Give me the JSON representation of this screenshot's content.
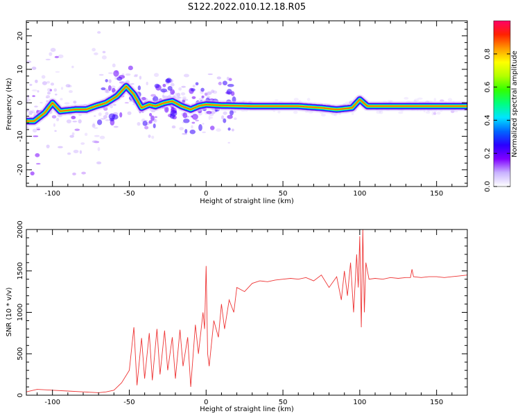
{
  "chart_data": [
    {
      "type": "heatmap",
      "title": "S122.2022.010.12.18.R05",
      "xlabel": "Height of straight line (km)",
      "ylabel": "Frequency (Hz)",
      "xlim": [
        -117,
        170
      ],
      "ylim": [
        -25,
        24.5
      ],
      "xticks": [
        -100,
        -50,
        0,
        50,
        100,
        150
      ],
      "yticks": [
        -20,
        -10,
        0,
        10,
        20
      ],
      "grid": false,
      "ridge": [
        {
          "x": -112,
          "y": -5.5
        },
        {
          "x": -105,
          "y": -3
        },
        {
          "x": -100,
          "y": 0
        },
        {
          "x": -95,
          "y": -2.5
        },
        {
          "x": -85,
          "y": -2
        },
        {
          "x": -78,
          "y": -2
        },
        {
          "x": -72,
          "y": -1
        },
        {
          "x": -65,
          "y": 0
        },
        {
          "x": -58,
          "y": 2
        },
        {
          "x": -52,
          "y": 5
        },
        {
          "x": -47,
          "y": 2.5
        },
        {
          "x": -42,
          "y": -1.5
        },
        {
          "x": -37,
          "y": -0.5
        },
        {
          "x": -33,
          "y": -1
        },
        {
          "x": -27,
          "y": 0
        },
        {
          "x": -22,
          "y": 0.5
        },
        {
          "x": -16,
          "y": -1
        },
        {
          "x": -10,
          "y": -2
        },
        {
          "x": -5,
          "y": -1
        },
        {
          "x": 0,
          "y": -0.5
        },
        {
          "x": 10,
          "y": -0.8
        },
        {
          "x": 30,
          "y": -1
        },
        {
          "x": 60,
          "y": -1
        },
        {
          "x": 75,
          "y": -1.5
        },
        {
          "x": 85,
          "y": -2
        },
        {
          "x": 95,
          "y": -1.5
        },
        {
          "x": 100,
          "y": 1
        },
        {
          "x": 105,
          "y": -1
        },
        {
          "x": 130,
          "y": -1
        },
        {
          "x": 170,
          "y": -1
        }
      ],
      "colorbar": {
        "label": "Normalized spectral amplitude",
        "range": [
          0,
          1
        ],
        "ticks": [
          0.0,
          0.2,
          0.4,
          0.6,
          0.8
        ],
        "tick_labels": [
          "0.0",
          "0.2",
          "0.4",
          "0.6",
          "0.8"
        ],
        "colors": [
          "#ffffff",
          "#c9b3ff",
          "#8000ff",
          "#2a00ff",
          "#0066ff",
          "#00e5ff",
          "#00ff7f",
          "#33ff00",
          "#b3ff00",
          "#ffff00",
          "#ff9900",
          "#ff2200",
          "#ff0066"
        ]
      }
    },
    {
      "type": "line",
      "xlabel": "Height of straight line (km)",
      "ylabel": "SNR (10 * v/v)",
      "xlim": [
        -117,
        170
      ],
      "ylim": [
        0,
        2000
      ],
      "xticks": [
        -100,
        -50,
        0,
        50,
        100,
        150
      ],
      "yticks": [
        0,
        500,
        1000,
        1500,
        2000
      ],
      "color": "#ee3333",
      "grid": false,
      "x": [
        -117,
        -110,
        -100,
        -90,
        -80,
        -70,
        -65,
        -60,
        -55,
        -50,
        -47,
        -45,
        -42,
        -40,
        -37,
        -35,
        -32,
        -30,
        -27,
        -25,
        -22,
        -20,
        -17,
        -15,
        -12,
        -10,
        -7,
        -5,
        -2,
        -1,
        0,
        1,
        2,
        5,
        8,
        10,
        12,
        15,
        18,
        20,
        25,
        30,
        35,
        40,
        45,
        50,
        55,
        60,
        65,
        70,
        75,
        80,
        85,
        88,
        90,
        92,
        94,
        96,
        98,
        99,
        100,
        101,
        102,
        103,
        104,
        106,
        110,
        115,
        120,
        125,
        130,
        133,
        134,
        135,
        140,
        145,
        150,
        155,
        160,
        165,
        170
      ],
      "y": [
        40,
        70,
        60,
        50,
        40,
        30,
        40,
        60,
        150,
        300,
        820,
        120,
        690,
        200,
        750,
        180,
        800,
        250,
        780,
        300,
        700,
        200,
        790,
        350,
        700,
        100,
        850,
        500,
        1000,
        800,
        1560,
        500,
        350,
        900,
        700,
        1100,
        800,
        1150,
        1000,
        1300,
        1250,
        1350,
        1380,
        1370,
        1390,
        1400,
        1410,
        1400,
        1420,
        1380,
        1450,
        1300,
        1430,
        1150,
        1500,
        1200,
        1600,
        1000,
        1700,
        1300,
        1920,
        820,
        2000,
        1000,
        1600,
        1400,
        1410,
        1400,
        1420,
        1410,
        1420,
        1420,
        1520,
        1430,
        1420,
        1430,
        1430,
        1420,
        1430,
        1440,
        1450
      ]
    }
  ]
}
